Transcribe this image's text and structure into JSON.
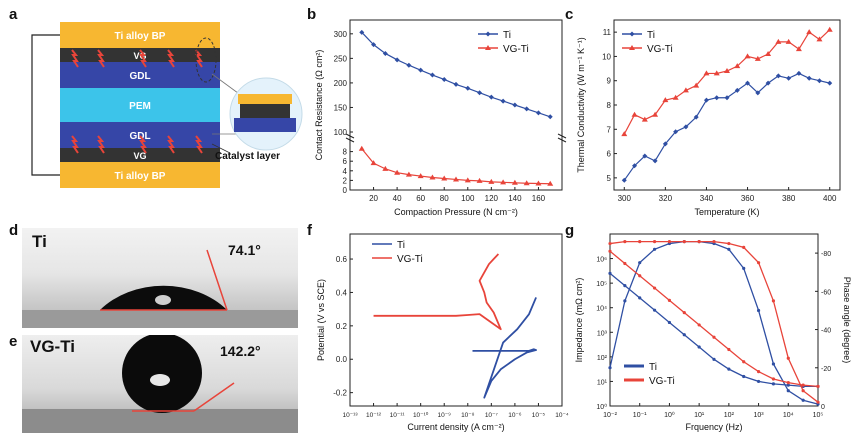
{
  "colors": {
    "ti": "#2f4fa3",
    "vgti": "#e8443a",
    "gold": "#f7b731",
    "gdl": "#3646a7",
    "pem": "#3cc4ea",
    "vg": "#333333"
  },
  "panel_labels": {
    "a": "a",
    "b": "b",
    "c": "c",
    "d": "d",
    "e": "e",
    "f": "f",
    "g": "g"
  },
  "schematic": {
    "layers": [
      "Ti alloy BP",
      "VG",
      "GDL",
      "PEM",
      "GDL",
      "VG",
      "Ti alloy BP"
    ],
    "callout": "Catalyst layer"
  },
  "contact": {
    "d_label": "Ti",
    "d_angle": "74.1°",
    "e_label": "VG-Ti",
    "e_angle": "142.2°"
  },
  "chart_data": [
    {
      "id": "b",
      "type": "line",
      "xlabel": "Compaction Pressure (N cm⁻²)",
      "ylabel": "Contact Resistance (Ω cm²)",
      "xlim": [
        0,
        180
      ],
      "xticks": [
        "20",
        "40",
        "60",
        "80",
        "100",
        "120",
        "140",
        "160"
      ],
      "y_lower": {
        "lim": [
          0,
          10
        ],
        "ticks": [
          "0",
          "2",
          "4",
          "6",
          "8"
        ]
      },
      "y_upper": {
        "lim": [
          100,
          320
        ],
        "ticks": [
          "100",
          "150",
          "200",
          "250",
          "300"
        ]
      },
      "legend": "top-right",
      "series": [
        {
          "name": "Ti",
          "axis": "upper",
          "x": [
            10,
            20,
            30,
            40,
            50,
            60,
            70,
            80,
            90,
            100,
            110,
            120,
            130,
            140,
            150,
            160,
            170
          ],
          "values": [
            303,
            278,
            260,
            247,
            236,
            226,
            216,
            207,
            197,
            189,
            180,
            171,
            163,
            155,
            147,
            139,
            131
          ]
        },
        {
          "name": "VG-Ti",
          "axis": "lower",
          "x": [
            10,
            20,
            30,
            40,
            50,
            60,
            70,
            80,
            90,
            100,
            110,
            120,
            130,
            140,
            150,
            160,
            170
          ],
          "values": [
            8.6,
            5.6,
            4.4,
            3.6,
            3.2,
            2.9,
            2.6,
            2.4,
            2.2,
            2.0,
            1.9,
            1.7,
            1.6,
            1.5,
            1.4,
            1.35,
            1.3
          ]
        }
      ]
    },
    {
      "id": "c",
      "type": "line",
      "xlabel": "Temperature (K)",
      "ylabel": "Thermal Conductivity (W m⁻¹ K⁻¹)",
      "xlim": [
        295,
        405
      ],
      "xticks": [
        "300",
        "320",
        "340",
        "360",
        "380",
        "400"
      ],
      "ylim": [
        4.5,
        11.5
      ],
      "yticks": [
        "5",
        "6",
        "7",
        "8",
        "9",
        "10",
        "11"
      ],
      "legend": "top-left",
      "series": [
        {
          "name": "Ti",
          "x": [
            300,
            305,
            310,
            315,
            320,
            325,
            330,
            335,
            340,
            345,
            350,
            355,
            360,
            365,
            370,
            375,
            380,
            385,
            390,
            395,
            400
          ],
          "values": [
            4.9,
            5.5,
            5.9,
            5.7,
            6.4,
            6.9,
            7.1,
            7.5,
            8.2,
            8.3,
            8.3,
            8.6,
            8.9,
            8.5,
            8.9,
            9.2,
            9.1,
            9.3,
            9.1,
            9.0,
            8.9
          ]
        },
        {
          "name": "VG-Ti",
          "x": [
            300,
            305,
            310,
            315,
            320,
            325,
            330,
            335,
            340,
            345,
            350,
            355,
            360,
            365,
            370,
            375,
            380,
            385,
            390,
            395,
            400
          ],
          "values": [
            6.8,
            7.6,
            7.4,
            7.6,
            8.2,
            8.3,
            8.6,
            8.8,
            9.3,
            9.3,
            9.4,
            9.6,
            10.0,
            9.9,
            10.1,
            10.6,
            10.6,
            10.3,
            11.0,
            10.7,
            11.1
          ]
        }
      ]
    },
    {
      "id": "f",
      "type": "line",
      "xlabel": "Current density (A cm⁻²)",
      "ylabel": "Potential (V vs SCE)",
      "xlim": [
        -13,
        -4
      ],
      "xticks": [
        "10⁻¹³",
        "10⁻¹²",
        "10⁻¹¹",
        "10⁻¹⁰",
        "10⁻⁹",
        "10⁻⁸",
        "10⁻⁷",
        "10⁻⁶",
        "10⁻⁵",
        "10⁻⁴"
      ],
      "x_scale": "log",
      "ylim": [
        -0.28,
        0.75
      ],
      "yticks": [
        "-0.2",
        "0.0",
        "0.2",
        "0.4",
        "0.6"
      ],
      "legend": "top-left",
      "series": [
        {
          "name": "Ti",
          "x_log": [
            -7.8,
            -7.2,
            -6.7,
            -6.0,
            -5.4,
            -5.2,
            -5.1,
            -5.5,
            -6.0,
            -6.6,
            -7.0,
            -7.3,
            -6.5,
            -5.9,
            -5.4,
            -5.1
          ],
          "values": [
            0.05,
            0.05,
            0.05,
            0.05,
            0.05,
            0.06,
            0.055,
            0.04,
            0.0,
            -0.06,
            -0.13,
            -0.23,
            0.1,
            0.18,
            0.27,
            0.37
          ]
        },
        {
          "name": "VG-Ti",
          "x_log": [
            -12.0,
            -10.0,
            -9.0,
            -8.5,
            -8.0,
            -7.5,
            -7.0,
            -6.6,
            -6.9,
            -7.2,
            -7.3,
            -7.5,
            -7.3,
            -7.1,
            -6.9,
            -6.7
          ],
          "values": [
            0.26,
            0.26,
            0.26,
            0.26,
            0.265,
            0.27,
            0.22,
            0.18,
            0.28,
            0.34,
            0.4,
            0.47,
            0.52,
            0.57,
            0.6,
            0.63
          ]
        }
      ]
    },
    {
      "id": "g",
      "type": "line",
      "xlabel": "Frquency (Hz)",
      "ylabel": "Impedance (mΩ cm²)",
      "y2label": "Phase angle (degree)",
      "xlim": [
        -2,
        5
      ],
      "xticks": [
        "10⁻²",
        "10⁻¹",
        "10⁰",
        "10¹",
        "10²",
        "10³",
        "10⁴",
        "10⁵"
      ],
      "ylim_log": [
        0,
        7
      ],
      "yticks": [
        "10⁰",
        "10¹",
        "10²",
        "10³",
        "10⁴",
        "10⁵",
        "10⁶"
      ],
      "y2lim": [
        0,
        -90
      ],
      "y2ticks": [
        "0",
        "-20",
        "-40",
        "-60",
        "-80"
      ],
      "legend": "bottom-left",
      "series": [
        {
          "name": "Ti",
          "kind": "impedance",
          "x_log": [
            -2,
            -1.5,
            -1,
            -0.5,
            0,
            0.5,
            1,
            1.5,
            2,
            2.5,
            3,
            3.5,
            4,
            4.5,
            5
          ],
          "values_log": [
            5.4,
            4.9,
            4.4,
            3.9,
            3.4,
            2.9,
            2.4,
            1.9,
            1.5,
            1.2,
            1.0,
            0.9,
            0.85,
            0.8,
            0.8
          ]
        },
        {
          "name": "Ti",
          "kind": "phase",
          "x_log": [
            -2,
            -1.5,
            -1,
            -0.5,
            0,
            0.5,
            1,
            1.5,
            2,
            2.5,
            3,
            3.5,
            4,
            4.5,
            5
          ],
          "values": [
            -20,
            -55,
            -75,
            -82,
            -85,
            -86,
            -86,
            -85,
            -82,
            -72,
            -50,
            -22,
            -8,
            -3,
            -1
          ]
        },
        {
          "name": "VG-Ti",
          "kind": "impedance",
          "x_log": [
            -2,
            -1.5,
            -1,
            -0.5,
            0,
            0.5,
            1,
            1.5,
            2,
            2.5,
            3,
            3.5,
            4,
            4.5,
            5
          ],
          "values_log": [
            6.3,
            5.8,
            5.3,
            4.8,
            4.3,
            3.8,
            3.3,
            2.8,
            2.3,
            1.8,
            1.4,
            1.1,
            0.95,
            0.85,
            0.8
          ]
        },
        {
          "name": "VG-Ti",
          "kind": "phase",
          "x_log": [
            -2,
            -1.5,
            -1,
            -0.5,
            0,
            0.5,
            1,
            1.5,
            2,
            2.5,
            3,
            3.5,
            4,
            4.5,
            5
          ],
          "values": [
            -85,
            -86,
            -86,
            -86,
            -86,
            -86,
            -86,
            -86,
            -85,
            -83,
            -75,
            -55,
            -25,
            -8,
            -2
          ]
        }
      ]
    }
  ]
}
